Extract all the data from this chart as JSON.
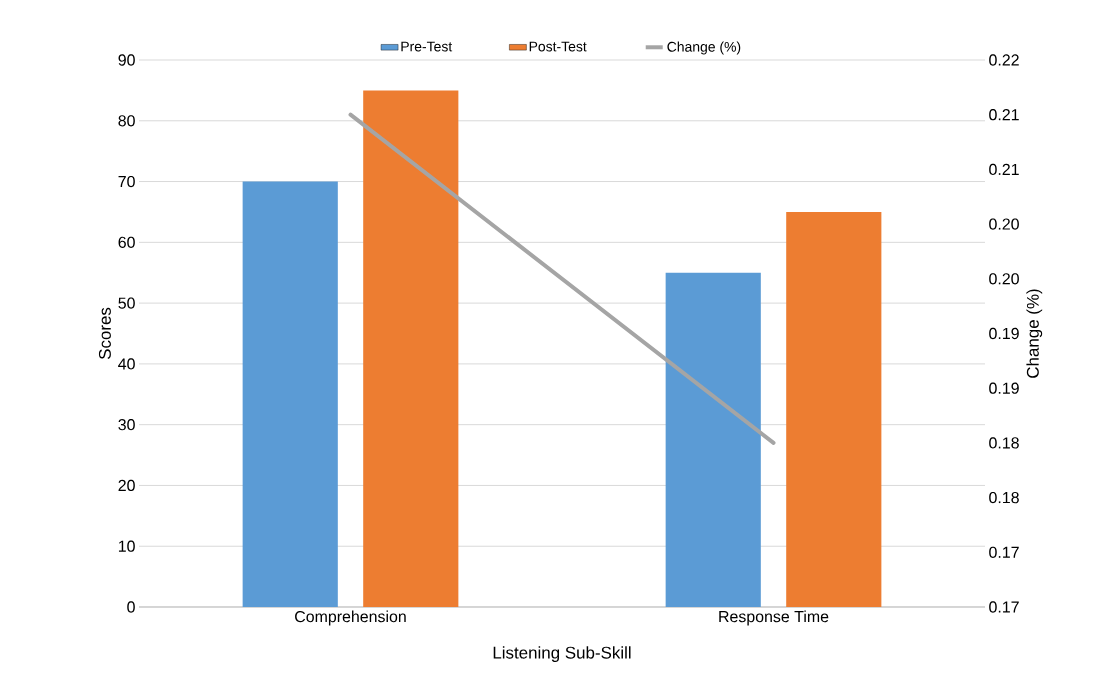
{
  "chart_data": {
    "type": "bar",
    "xlabel": "Listening Sub-Skill",
    "ylabel": "Scores",
    "y2label": "Change (%)",
    "categories": [
      "Comprehension",
      "Response Time"
    ],
    "series": [
      {
        "name": "Pre-Test",
        "color": "#5b9bd5",
        "values": [
          70,
          55
        ]
      },
      {
        "name": "Post-Test",
        "color": "#ed7d31",
        "values": [
          85,
          65
        ]
      },
      {
        "name": "Change (%)",
        "type": "line",
        "axis": "y2",
        "color": "#a5a5a5",
        "values": [
          0.21,
          0.18
        ]
      }
    ],
    "ylim": [
      0,
      90
    ],
    "yticks": [
      0,
      10,
      20,
      30,
      40,
      50,
      60,
      70,
      80,
      90
    ],
    "y2lim": [
      0.165,
      0.215
    ],
    "y2ticks": [
      {
        "value": 0.165,
        "label": "0.17"
      },
      {
        "value": 0.17,
        "label": "0.17"
      },
      {
        "value": 0.175,
        "label": "0.18"
      },
      {
        "value": 0.18,
        "label": "0.18"
      },
      {
        "value": 0.185,
        "label": "0.19"
      },
      {
        "value": 0.19,
        "label": "0.19"
      },
      {
        "value": 0.195,
        "label": "0.20"
      },
      {
        "value": 0.2,
        "label": "0.20"
      },
      {
        "value": 0.205,
        "label": "0.21"
      },
      {
        "value": 0.21,
        "label": "0.21"
      },
      {
        "value": 0.215,
        "label": "0.22"
      }
    ],
    "grid": "y",
    "legend": "top",
    "marker": "none",
    "line_style": "solid"
  }
}
